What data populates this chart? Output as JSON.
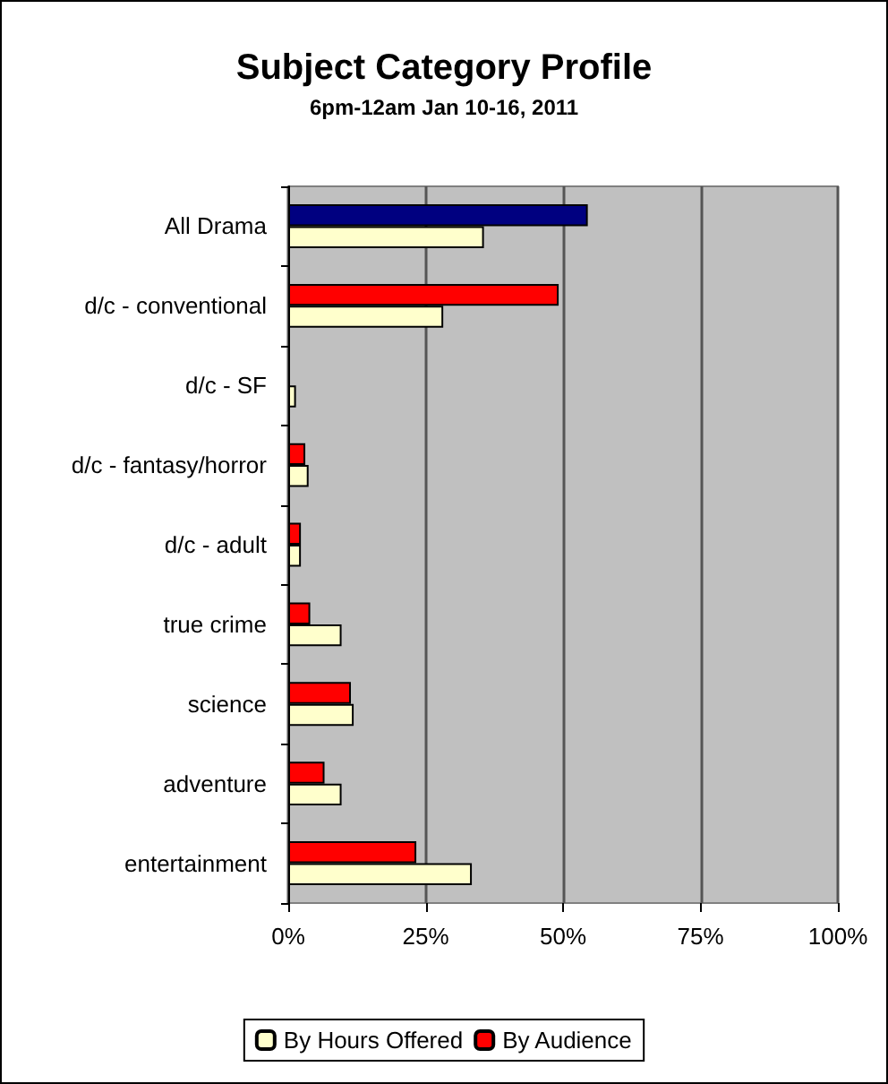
{
  "chart_data": {
    "type": "bar",
    "orientation": "horizontal",
    "title": "Subject Category Profile",
    "subtitle": "6pm-12am Jan 10-16, 2011",
    "categories": [
      "All Drama",
      "d/c - conventional",
      "d/c - SF",
      "d/c - fantasy/horror",
      "d/c - adult",
      "true crime",
      "science",
      "adventure",
      "entertainment"
    ],
    "series": [
      {
        "name": "By Audience",
        "color": "#ff0000",
        "colors": [
          "#000080",
          "#ff0000",
          "#ff0000",
          "#ff0000",
          "#ff0000",
          "#ff0000",
          "#ff0000",
          "#ff0000",
          "#ff0000"
        ],
        "values": [
          54.5,
          49.2,
          null,
          3.1,
          2.3,
          4.0,
          11.4,
          6.6,
          23.3
        ]
      },
      {
        "name": "By Hours Offered",
        "color": "#ffffcc",
        "values": [
          35.6,
          28.2,
          1.4,
          3.7,
          2.3,
          9.7,
          11.9,
          9.7,
          33.4
        ]
      }
    ],
    "xlim": [
      0,
      100
    ],
    "xticks": [
      {
        "value": 0,
        "label": "0%"
      },
      {
        "value": 25,
        "label": "25%"
      },
      {
        "value": 50,
        "label": "50%"
      },
      {
        "value": 75,
        "label": "75%"
      },
      {
        "value": 100,
        "label": "100%"
      }
    ],
    "grid": "x",
    "legend": "bottom"
  }
}
